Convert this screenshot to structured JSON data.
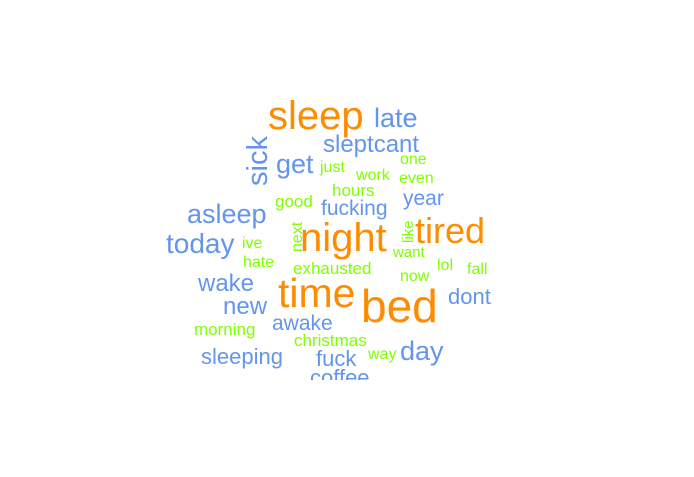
{
  "colors": {
    "large": "#FF8C00",
    "medium": "#6495ED",
    "small": "#7FFF00"
  },
  "words": [
    {
      "text": "sleep",
      "group": "large"
    },
    {
      "text": "late",
      "group": "medium"
    },
    {
      "text": "sick",
      "group": "medium"
    },
    {
      "text": "sleptcant",
      "group": "medium"
    },
    {
      "text": "get",
      "group": "medium"
    },
    {
      "text": "just",
      "group": "small"
    },
    {
      "text": "one",
      "group": "small"
    },
    {
      "text": "work",
      "group": "small"
    },
    {
      "text": "even",
      "group": "small"
    },
    {
      "text": "hours",
      "group": "small"
    },
    {
      "text": "year",
      "group": "medium"
    },
    {
      "text": "good",
      "group": "small"
    },
    {
      "text": "fucking",
      "group": "medium"
    },
    {
      "text": "asleep",
      "group": "medium"
    },
    {
      "text": "next",
      "group": "small"
    },
    {
      "text": "night",
      "group": "large"
    },
    {
      "text": "like",
      "group": "small"
    },
    {
      "text": "tired",
      "group": "large"
    },
    {
      "text": "today",
      "group": "medium"
    },
    {
      "text": "ive",
      "group": "small"
    },
    {
      "text": "want",
      "group": "small"
    },
    {
      "text": "hate",
      "group": "small"
    },
    {
      "text": "exhausted",
      "group": "small"
    },
    {
      "text": "lol",
      "group": "small"
    },
    {
      "text": "fall",
      "group": "small"
    },
    {
      "text": "now",
      "group": "small"
    },
    {
      "text": "wake",
      "group": "medium"
    },
    {
      "text": "time",
      "group": "large"
    },
    {
      "text": "bed",
      "group": "large"
    },
    {
      "text": "dont",
      "group": "medium"
    },
    {
      "text": "new",
      "group": "medium"
    },
    {
      "text": "awake",
      "group": "medium"
    },
    {
      "text": "morning",
      "group": "small"
    },
    {
      "text": "christmas",
      "group": "small"
    },
    {
      "text": "day",
      "group": "medium"
    },
    {
      "text": "sleeping",
      "group": "medium"
    },
    {
      "text": "fuck",
      "group": "medium"
    },
    {
      "text": "way",
      "group": "small"
    },
    {
      "text": "coffee",
      "group": "medium"
    }
  ]
}
